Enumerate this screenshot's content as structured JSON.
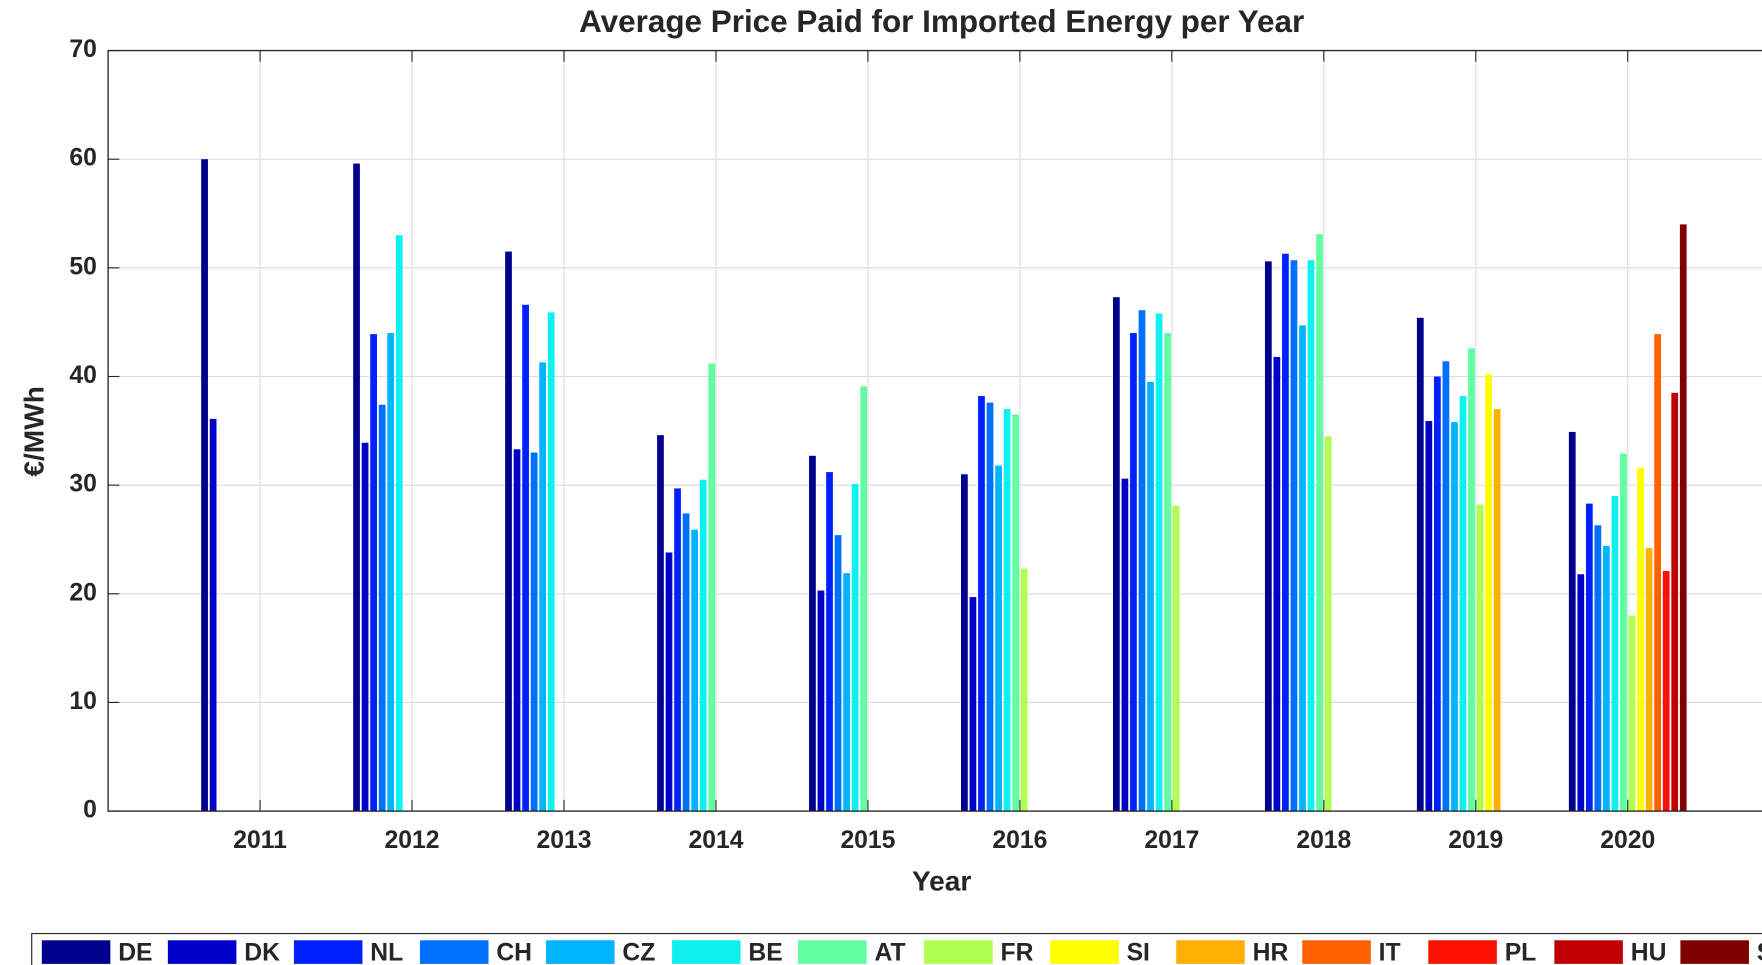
{
  "chart_data": {
    "type": "bar",
    "title": "Average Price Paid for Imported Energy per Year",
    "xlabel": "Year",
    "ylabel": "€/MWh",
    "x": [
      2011,
      2012,
      2013,
      2014,
      2015,
      2016,
      2017,
      2018,
      2019,
      2020
    ],
    "xlim": [
      2010,
      2021
    ],
    "xticks": [
      2011,
      2012,
      2013,
      2014,
      2015,
      2016,
      2017,
      2018,
      2019,
      2020
    ],
    "ylim": [
      0,
      70
    ],
    "yticks": [
      0,
      10,
      20,
      30,
      40,
      50,
      60,
      70
    ],
    "grid": true,
    "legend": "south-outside",
    "series": [
      {
        "name": "DE",
        "color": "#00008f",
        "values": [
          60,
          59.6,
          51.5,
          34.6,
          32.7,
          31.0,
          47.3,
          50.6,
          45.4,
          34.9
        ]
      },
      {
        "name": "DK",
        "color": "#0000c8",
        "values": [
          36.1,
          33.9,
          33.3,
          23.8,
          20.3,
          19.7,
          30.6,
          41.8,
          35.9,
          21.8
        ]
      },
      {
        "name": "NL",
        "color": "#0020ff",
        "values": [
          null,
          43.9,
          46.6,
          29.7,
          31.2,
          38.2,
          44.0,
          51.3,
          40.0,
          28.3
        ]
      },
      {
        "name": "CH",
        "color": "#0070ff",
        "values": [
          null,
          37.4,
          33.0,
          27.4,
          25.4,
          37.6,
          46.1,
          50.7,
          41.4,
          26.3
        ]
      },
      {
        "name": "CZ",
        "color": "#00b4ff",
        "values": [
          null,
          44.0,
          41.3,
          25.9,
          21.9,
          31.8,
          39.5,
          44.7,
          35.8,
          24.4
        ]
      },
      {
        "name": "BE",
        "color": "#10f0f0",
        "values": [
          null,
          53.0,
          45.9,
          30.5,
          30.1,
          37.0,
          45.8,
          50.7,
          38.2,
          29.0
        ]
      },
      {
        "name": "AT",
        "color": "#60ffa0",
        "values": [
          null,
          null,
          null,
          41.2,
          39.1,
          36.5,
          44.0,
          53.1,
          42.6,
          32.9
        ]
      },
      {
        "name": "FR",
        "color": "#b0ff50",
        "values": [
          null,
          null,
          null,
          null,
          null,
          22.3,
          28.1,
          34.5,
          28.2,
          18.0
        ]
      },
      {
        "name": "SI",
        "color": "#ffff00",
        "values": [
          null,
          null,
          null,
          null,
          null,
          null,
          null,
          null,
          40.2,
          31.6
        ]
      },
      {
        "name": "HR",
        "color": "#ffb000",
        "values": [
          null,
          null,
          null,
          null,
          null,
          null,
          null,
          null,
          37.0,
          24.2
        ]
      },
      {
        "name": "IT",
        "color": "#ff6000",
        "values": [
          null,
          null,
          null,
          null,
          null,
          null,
          null,
          null,
          null,
          43.9
        ]
      },
      {
        "name": "PL",
        "color": "#ff1000",
        "values": [
          null,
          null,
          null,
          null,
          null,
          null,
          null,
          null,
          null,
          22.1
        ]
      },
      {
        "name": "HU",
        "color": "#c00000",
        "values": [
          null,
          null,
          null,
          null,
          null,
          null,
          null,
          null,
          null,
          38.5
        ]
      },
      {
        "name": "SK",
        "color": "#800000",
        "values": [
          null,
          null,
          null,
          null,
          null,
          null,
          null,
          null,
          null,
          54.0
        ]
      }
    ]
  }
}
